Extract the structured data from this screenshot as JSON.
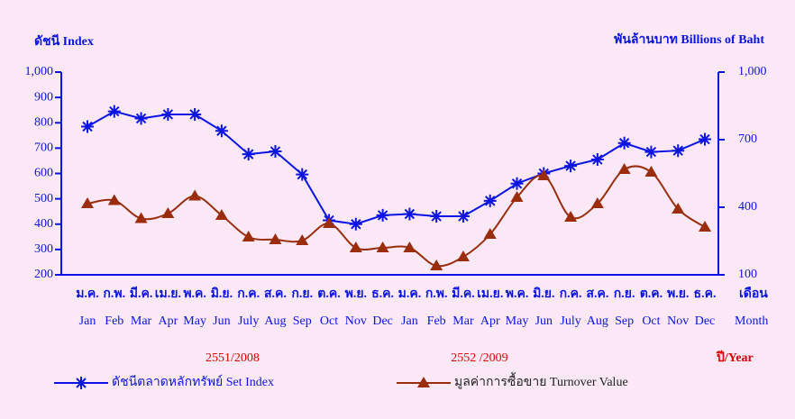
{
  "chart_data": {
    "type": "line",
    "y_label": "ดัชนี  Index",
    "y2_label": "พันล้านบาท  Billions of Baht",
    "categories": [
      "Jan",
      "Feb",
      "Mar",
      "Apr",
      "May",
      "Jun",
      "July",
      "Aug",
      "Sep",
      "Oct",
      "Nov",
      "Dec",
      "Jan",
      "Feb",
      "Mar",
      "Apr",
      "May",
      "Jun",
      "July",
      "Aug",
      "Sep",
      "Oct",
      "Nov",
      "Dec"
    ],
    "categories_th": [
      "ม.ค.",
      "ก.พ.",
      "มี.ค.",
      "เม.ย.",
      "พ.ค.",
      "มิ.ย.",
      "ก.ค.",
      "ส.ค.",
      "ก.ย.",
      "ต.ค.",
      "พ.ย.",
      "ธ.ค.",
      "ม.ค.",
      "ก.พ.",
      "มี.ค.",
      "เม.ย.",
      "พ.ค.",
      "มิ.ย.",
      "ก.ค.",
      "ส.ค.",
      "ก.ย.",
      "ต.ค.",
      "พ.ย.",
      "ธ.ค."
    ],
    "x_unit_th": "เดือน",
    "x_unit": "Month",
    "year_labels": [
      "2551/2008",
      "2552 /2009"
    ],
    "year_axis_label": {
      "th": "ปี",
      "en": "/Year"
    },
    "ylim": [
      200,
      1000
    ],
    "yticks": [
      200,
      300,
      400,
      500,
      600,
      700,
      800,
      900,
      {
        "value": 1000,
        "label": "1,000"
      }
    ],
    "y2lim": [
      100,
      1000
    ],
    "y2ticks": [
      100,
      400,
      700,
      {
        "value": 1000,
        "label": "1,000"
      }
    ],
    "series": [
      {
        "name": "ดัชนีตลาดหลักทรัพย์ Set Index",
        "color": "#0a14e6",
        "marker": "star",
        "values": [
          785,
          845,
          817,
          833,
          833,
          768,
          676,
          687,
          596,
          415,
          400,
          435,
          440,
          431,
          431,
          492,
          560,
          600,
          630,
          655,
          720,
          685,
          690,
          735
        ]
      },
      {
        "name": "มูลค่าการซื้อขาย Turnover Value",
        "color": "#9b2d0c",
        "marker": "triangle",
        "axis": "y2",
        "values": [
          416,
          430,
          350,
          372,
          450,
          364,
          268,
          256,
          252,
          328,
          220,
          220,
          220,
          140,
          180,
          280,
          444,
          540,
          356,
          416,
          568,
          556,
          392,
          312
        ]
      }
    ]
  }
}
